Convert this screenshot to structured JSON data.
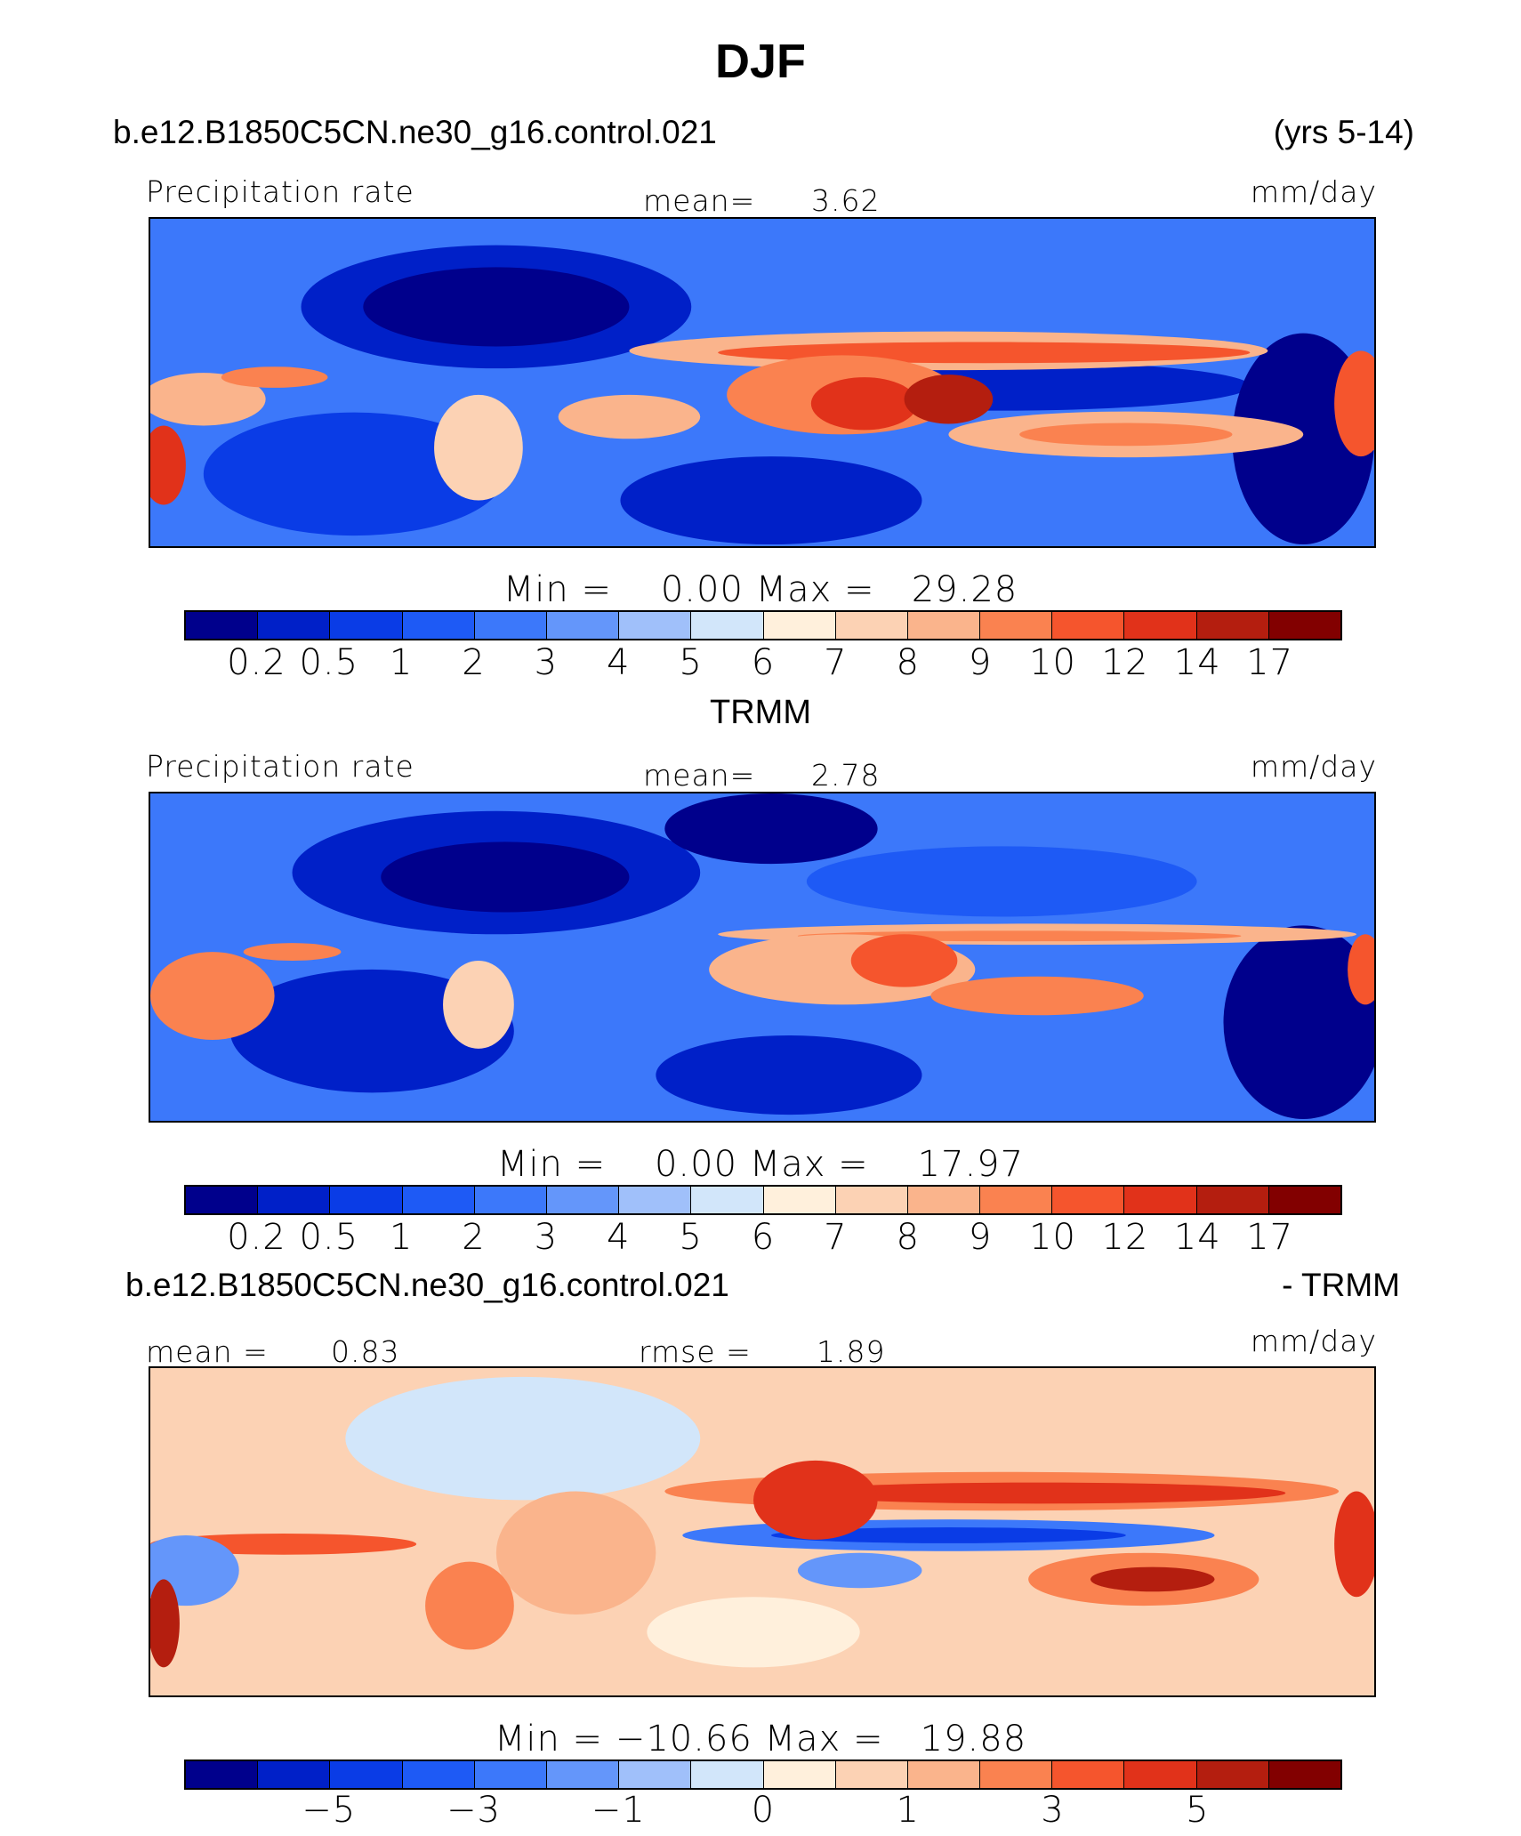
{
  "figure": {
    "title": "DJF",
    "case_name": "b.e12.B1850C5CN.ne30_g16.control.021",
    "years": "(yrs 5-14)"
  },
  "panels": [
    {
      "variable": "Precipitation rate",
      "mean_label": "mean=",
      "mean_value": "3.62",
      "units": "mm/day",
      "min_label": "Min",
      "min_value": "0.00",
      "max_label": "Max",
      "max_value": "29.28"
    },
    {
      "subtitle": "TRMM",
      "variable": "Precipitation rate",
      "mean_label": "mean=",
      "mean_value": "2.78",
      "units": "mm/day",
      "min_label": "Min",
      "min_value": "0.00",
      "max_label": "Max",
      "max_value": "17.97"
    },
    {
      "case_name": "b.e12.B1850C5CN.ne30_g16.control.021",
      "minus_label": "- TRMM",
      "mean_label": "mean =",
      "mean_value": "0.83",
      "rmse_label": "rmse =",
      "rmse_value": "1.89",
      "units": "mm/day",
      "min_label": "Min",
      "min_value": "−10.66",
      "max_label": "Max",
      "max_value": "19.88"
    }
  ],
  "colorbars": {
    "colors": [
      "#00008c",
      "#0020c8",
      "#0a3ce6",
      "#1e5af5",
      "#3c78fa",
      "#6496fa",
      "#a0c0fa",
      "#d2e6fa",
      "#fff0dc",
      "#fcd2b4",
      "#fab48c",
      "#fa8250",
      "#f5552d",
      "#e1321a",
      "#b41e0f",
      "#820000"
    ],
    "abs_tick_labels": [
      "0.2",
      "0.5",
      "1",
      "2",
      "3",
      "4",
      "5",
      "6",
      "7",
      "8",
      "9",
      "10",
      "12",
      "14",
      "17"
    ],
    "diff_tick_labels": [
      "−5",
      "−3",
      "−1",
      "0",
      "1",
      "3",
      "5"
    ]
  }
}
